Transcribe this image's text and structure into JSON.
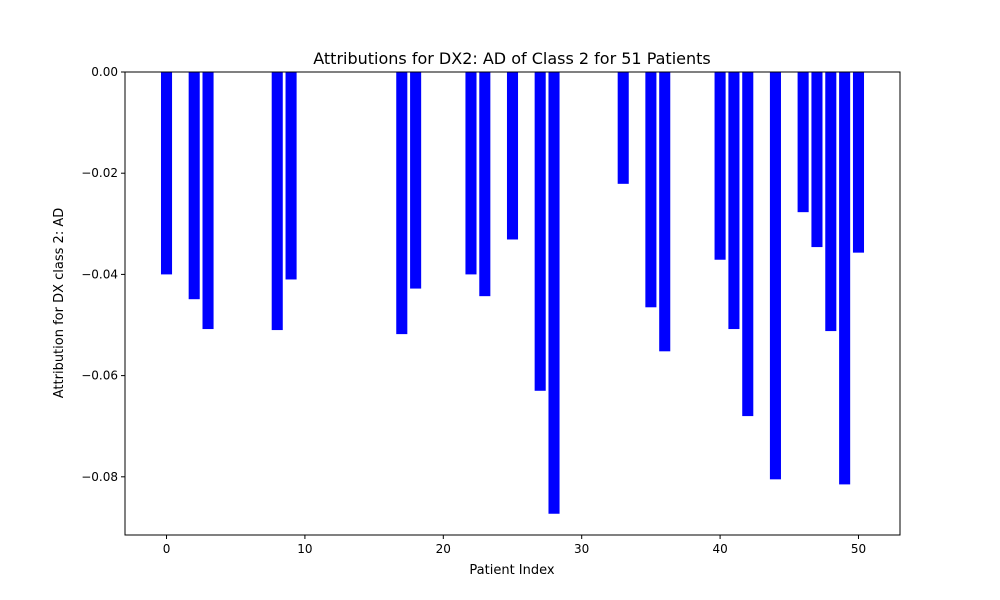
{
  "chart_data": {
    "type": "bar",
    "title": "Attributions for DX2: AD of Class 2 for 51 Patients",
    "xlabel": "Patient Index",
    "ylabel": "Attribution for DX class 2: AD",
    "xlim": [
      -3,
      53
    ],
    "ylim": [
      -0.0915,
      0.0
    ],
    "xticks": [
      0,
      10,
      20,
      30,
      40,
      50
    ],
    "xtick_labels": [
      "0",
      "10",
      "20",
      "30",
      "40",
      "50"
    ],
    "yticks": [
      0.0,
      -0.02,
      -0.04,
      -0.06,
      -0.08
    ],
    "ytick_labels": [
      "0.00",
      "−0.02",
      "−0.04",
      "−0.06",
      "−0.08"
    ],
    "bar_width": 0.8,
    "bar_color": "#0000ff",
    "grid": false,
    "x": [
      0,
      2,
      3,
      8,
      9,
      17,
      18,
      22,
      23,
      25,
      27,
      28,
      33,
      35,
      36,
      40,
      41,
      42,
      44,
      46,
      47,
      48,
      49,
      50
    ],
    "values": [
      -0.04,
      -0.0449,
      -0.0508,
      -0.051,
      -0.041,
      -0.0518,
      -0.0428,
      -0.04,
      -0.0443,
      -0.0331,
      -0.063,
      -0.0873,
      -0.0221,
      -0.0465,
      -0.0552,
      -0.0371,
      -0.0508,
      -0.068,
      -0.0805,
      -0.0277,
      -0.0346,
      -0.0512,
      -0.0815,
      -0.0357
    ]
  }
}
